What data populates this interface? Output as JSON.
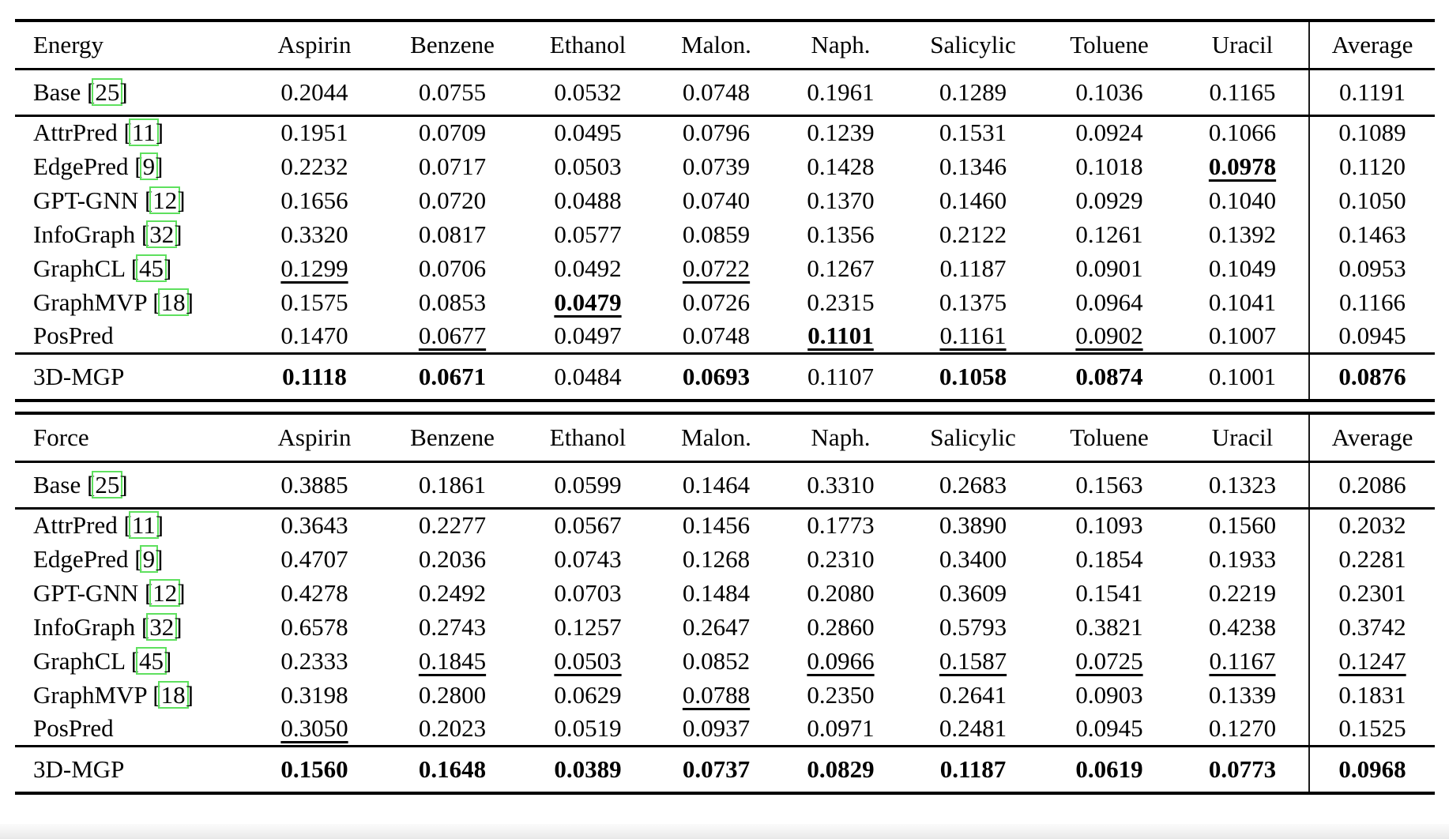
{
  "cite_box_color": "#5ee05e",
  "columns": [
    "Aspirin",
    "Benzene",
    "Ethanol",
    "Malon.",
    "Naph.",
    "Salicylic",
    "Toluene",
    "Uracil",
    "Average"
  ],
  "tables": [
    {
      "id": "energy",
      "label": "Energy",
      "groups": [
        {
          "rows": [
            {
              "name": "Base",
              "cite": "25",
              "cells": [
                [
                  "0.2044",
                  ""
                ],
                [
                  "0.0755",
                  ""
                ],
                [
                  "0.0532",
                  ""
                ],
                [
                  "0.0748",
                  ""
                ],
                [
                  "0.1961",
                  ""
                ],
                [
                  "0.1289",
                  ""
                ],
                [
                  "0.1036",
                  ""
                ],
                [
                  "0.1165",
                  ""
                ],
                [
                  "0.1191",
                  ""
                ]
              ]
            }
          ]
        },
        {
          "rows": [
            {
              "name": "AttrPred",
              "cite": "11",
              "cells": [
                [
                  "0.1951",
                  ""
                ],
                [
                  "0.0709",
                  ""
                ],
                [
                  "0.0495",
                  ""
                ],
                [
                  "0.0796",
                  ""
                ],
                [
                  "0.1239",
                  ""
                ],
                [
                  "0.1531",
                  ""
                ],
                [
                  "0.0924",
                  ""
                ],
                [
                  "0.1066",
                  ""
                ],
                [
                  "0.1089",
                  ""
                ]
              ]
            },
            {
              "name": "EdgePred",
              "cite": "9",
              "cells": [
                [
                  "0.2232",
                  ""
                ],
                [
                  "0.0717",
                  ""
                ],
                [
                  "0.0503",
                  ""
                ],
                [
                  "0.0739",
                  ""
                ],
                [
                  "0.1428",
                  ""
                ],
                [
                  "0.1346",
                  ""
                ],
                [
                  "0.1018",
                  ""
                ],
                [
                  "0.0978",
                  "bu"
                ],
                [
                  "0.1120",
                  ""
                ]
              ]
            },
            {
              "name": "GPT-GNN",
              "cite": "12",
              "cells": [
                [
                  "0.1656",
                  ""
                ],
                [
                  "0.0720",
                  ""
                ],
                [
                  "0.0488",
                  ""
                ],
                [
                  "0.0740",
                  ""
                ],
                [
                  "0.1370",
                  ""
                ],
                [
                  "0.1460",
                  ""
                ],
                [
                  "0.0929",
                  ""
                ],
                [
                  "0.1040",
                  ""
                ],
                [
                  "0.1050",
                  ""
                ]
              ]
            },
            {
              "name": "InfoGraph",
              "cite": "32",
              "cells": [
                [
                  "0.3320",
                  ""
                ],
                [
                  "0.0817",
                  ""
                ],
                [
                  "0.0577",
                  ""
                ],
                [
                  "0.0859",
                  ""
                ],
                [
                  "0.1356",
                  ""
                ],
                [
                  "0.2122",
                  ""
                ],
                [
                  "0.1261",
                  ""
                ],
                [
                  "0.1392",
                  ""
                ],
                [
                  "0.1463",
                  ""
                ]
              ]
            },
            {
              "name": "GraphCL",
              "cite": "45",
              "cells": [
                [
                  "0.1299",
                  "u"
                ],
                [
                  "0.0706",
                  ""
                ],
                [
                  "0.0492",
                  ""
                ],
                [
                  "0.0722",
                  "u"
                ],
                [
                  "0.1267",
                  ""
                ],
                [
                  "0.1187",
                  ""
                ],
                [
                  "0.0901",
                  ""
                ],
                [
                  "0.1049",
                  ""
                ],
                [
                  "0.0953",
                  ""
                ]
              ]
            },
            {
              "name": "GraphMVP",
              "cite": "18",
              "cells": [
                [
                  "0.1575",
                  ""
                ],
                [
                  "0.0853",
                  ""
                ],
                [
                  "0.0479",
                  "bu"
                ],
                [
                  "0.0726",
                  ""
                ],
                [
                  "0.2315",
                  ""
                ],
                [
                  "0.1375",
                  ""
                ],
                [
                  "0.0964",
                  ""
                ],
                [
                  "0.1041",
                  ""
                ],
                [
                  "0.1166",
                  ""
                ]
              ]
            },
            {
              "name": "PosPred",
              "cite": null,
              "cells": [
                [
                  "0.1470",
                  ""
                ],
                [
                  "0.0677",
                  "u"
                ],
                [
                  "0.0497",
                  ""
                ],
                [
                  "0.0748",
                  ""
                ],
                [
                  "0.1101",
                  "bu"
                ],
                [
                  "0.1161",
                  "u"
                ],
                [
                  "0.0902",
                  "u"
                ],
                [
                  "0.1007",
                  ""
                ],
                [
                  "0.0945",
                  ""
                ]
              ]
            }
          ]
        },
        {
          "rows": [
            {
              "name": "3D-MGP",
              "cite": null,
              "cells": [
                [
                  "0.1118",
                  "b"
                ],
                [
                  "0.0671",
                  "b"
                ],
                [
                  "0.0484",
                  ""
                ],
                [
                  "0.0693",
                  "b"
                ],
                [
                  "0.1107",
                  ""
                ],
                [
                  "0.1058",
                  "b"
                ],
                [
                  "0.0874",
                  "b"
                ],
                [
                  "0.1001",
                  ""
                ],
                [
                  "0.0876",
                  "b"
                ]
              ]
            }
          ]
        }
      ]
    },
    {
      "id": "force",
      "label": "Force",
      "groups": [
        {
          "rows": [
            {
              "name": "Base",
              "cite": "25",
              "cells": [
                [
                  "0.3885",
                  ""
                ],
                [
                  "0.1861",
                  ""
                ],
                [
                  "0.0599",
                  ""
                ],
                [
                  "0.1464",
                  ""
                ],
                [
                  "0.3310",
                  ""
                ],
                [
                  "0.2683",
                  ""
                ],
                [
                  "0.1563",
                  ""
                ],
                [
                  "0.1323",
                  ""
                ],
                [
                  "0.2086",
                  ""
                ]
              ]
            }
          ]
        },
        {
          "rows": [
            {
              "name": "AttrPred",
              "cite": "11",
              "cells": [
                [
                  "0.3643",
                  ""
                ],
                [
                  "0.2277",
                  ""
                ],
                [
                  "0.0567",
                  ""
                ],
                [
                  "0.1456",
                  ""
                ],
                [
                  "0.1773",
                  ""
                ],
                [
                  "0.3890",
                  ""
                ],
                [
                  "0.1093",
                  ""
                ],
                [
                  "0.1560",
                  ""
                ],
                [
                  "0.2032",
                  ""
                ]
              ]
            },
            {
              "name": "EdgePred",
              "cite": "9",
              "cells": [
                [
                  "0.4707",
                  ""
                ],
                [
                  "0.2036",
                  ""
                ],
                [
                  "0.0743",
                  ""
                ],
                [
                  "0.1268",
                  ""
                ],
                [
                  "0.2310",
                  ""
                ],
                [
                  "0.3400",
                  ""
                ],
                [
                  "0.1854",
                  ""
                ],
                [
                  "0.1933",
                  ""
                ],
                [
                  "0.2281",
                  ""
                ]
              ]
            },
            {
              "name": "GPT-GNN",
              "cite": "12",
              "cells": [
                [
                  "0.4278",
                  ""
                ],
                [
                  "0.2492",
                  ""
                ],
                [
                  "0.0703",
                  ""
                ],
                [
                  "0.1484",
                  ""
                ],
                [
                  "0.2080",
                  ""
                ],
                [
                  "0.3609",
                  ""
                ],
                [
                  "0.1541",
                  ""
                ],
                [
                  "0.2219",
                  ""
                ],
                [
                  "0.2301",
                  ""
                ]
              ]
            },
            {
              "name": "InfoGraph",
              "cite": "32",
              "cells": [
                [
                  "0.6578",
                  ""
                ],
                [
                  "0.2743",
                  ""
                ],
                [
                  "0.1257",
                  ""
                ],
                [
                  "0.2647",
                  ""
                ],
                [
                  "0.2860",
                  ""
                ],
                [
                  "0.5793",
                  ""
                ],
                [
                  "0.3821",
                  ""
                ],
                [
                  "0.4238",
                  ""
                ],
                [
                  "0.3742",
                  ""
                ]
              ]
            },
            {
              "name": "GraphCL",
              "cite": "45",
              "cells": [
                [
                  "0.2333",
                  ""
                ],
                [
                  "0.1845",
                  "u"
                ],
                [
                  "0.0503",
                  "u"
                ],
                [
                  "0.0852",
                  ""
                ],
                [
                  "0.0966",
                  "u"
                ],
                [
                  "0.1587",
                  "u"
                ],
                [
                  "0.0725",
                  "u"
                ],
                [
                  "0.1167",
                  "u"
                ],
                [
                  "0.1247",
                  "u"
                ]
              ]
            },
            {
              "name": "GraphMVP",
              "cite": "18",
              "cells": [
                [
                  "0.3198",
                  ""
                ],
                [
                  "0.2800",
                  ""
                ],
                [
                  "0.0629",
                  ""
                ],
                [
                  "0.0788",
                  "u"
                ],
                [
                  "0.2350",
                  ""
                ],
                [
                  "0.2641",
                  ""
                ],
                [
                  "0.0903",
                  ""
                ],
                [
                  "0.1339",
                  ""
                ],
                [
                  "0.1831",
                  ""
                ]
              ]
            },
            {
              "name": "PosPred",
              "cite": null,
              "cells": [
                [
                  "0.3050",
                  "u"
                ],
                [
                  "0.2023",
                  ""
                ],
                [
                  "0.0519",
                  ""
                ],
                [
                  "0.0937",
                  ""
                ],
                [
                  "0.0971",
                  ""
                ],
                [
                  "0.2481",
                  ""
                ],
                [
                  "0.0945",
                  ""
                ],
                [
                  "0.1270",
                  ""
                ],
                [
                  "0.1525",
                  ""
                ]
              ]
            }
          ]
        },
        {
          "rows": [
            {
              "name": "3D-MGP",
              "cite": null,
              "cells": [
                [
                  "0.1560",
                  "b"
                ],
                [
                  "0.1648",
                  "b"
                ],
                [
                  "0.0389",
                  "b"
                ],
                [
                  "0.0737",
                  "b"
                ],
                [
                  "0.0829",
                  "b"
                ],
                [
                  "0.1187",
                  "b"
                ],
                [
                  "0.0619",
                  "b"
                ],
                [
                  "0.0773",
                  "b"
                ],
                [
                  "0.0968",
                  "b"
                ]
              ]
            }
          ]
        }
      ]
    }
  ]
}
